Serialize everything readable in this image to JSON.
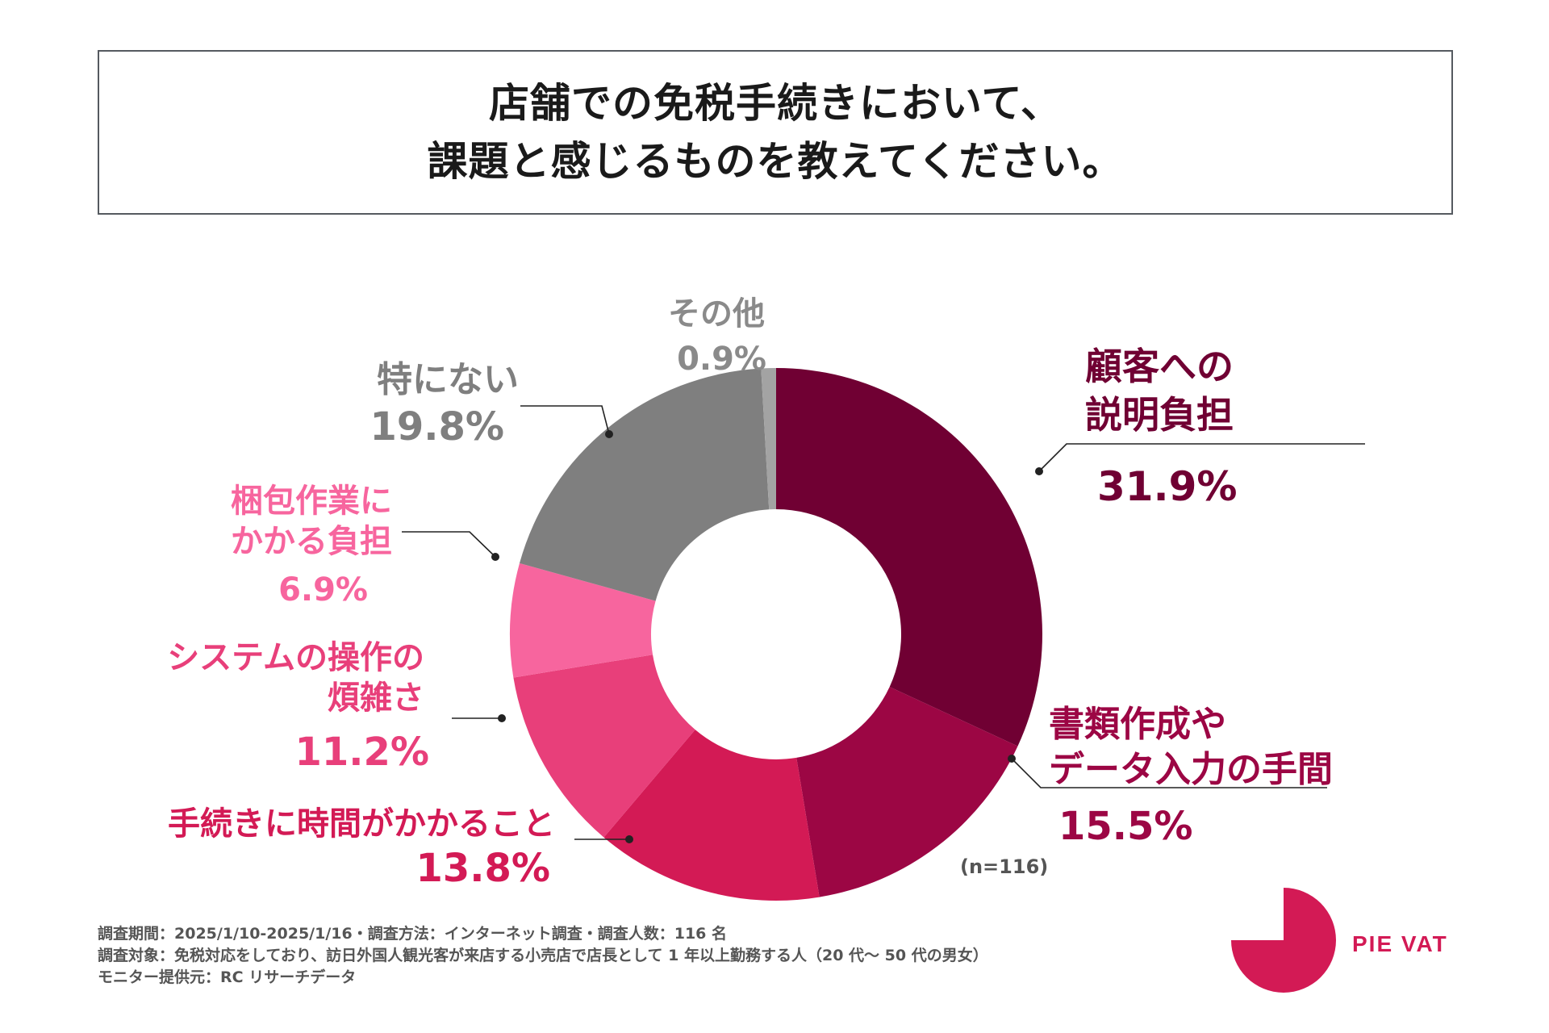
{
  "title": {
    "line1": "店舗での免税手続きにおいて、",
    "line2": "課題と感じるものを教えてください。"
  },
  "chart_data": {
    "type": "pie",
    "variant": "donut",
    "title": "店舗での免税手続きにおいて、課題と感じるものを教えてください。",
    "sample": "(n=116)",
    "slices": [
      {
        "label": "顧客への説明負担",
        "label_lines": [
          "顧客への",
          "説明負担"
        ],
        "value": 31.9,
        "value_label": "31.9%",
        "color": "#700033"
      },
      {
        "label": "書類作成やデータ入力の手間",
        "label_lines": [
          "書類作成や",
          "データ入力の手間"
        ],
        "value": 15.5,
        "value_label": "15.5%",
        "color": "#9c0644"
      },
      {
        "label": "手続きに時間がかかること",
        "label_lines": [
          "手続きに時間がかかること"
        ],
        "value": 13.8,
        "value_label": "13.8%",
        "color": "#d31a55"
      },
      {
        "label": "システムの操作の煩雑さ",
        "label_lines": [
          "システムの操作の",
          "煩雑さ"
        ],
        "value": 11.2,
        "value_label": "11.2%",
        "color": "#e83f7a"
      },
      {
        "label": "梱包作業にかかる負担",
        "label_lines": [
          "梱包作業に",
          "かかる負担"
        ],
        "value": 6.9,
        "value_label": "6.9%",
        "color": "#f7659e"
      },
      {
        "label": "特にない",
        "label_lines": [
          "特にない"
        ],
        "value": 19.8,
        "value_label": "19.8%",
        "color": "#7f7f7f"
      },
      {
        "label": "その他",
        "label_lines": [
          "その他"
        ],
        "value": 0.9,
        "value_label": "0.9%",
        "color": "#a3a3a3"
      }
    ]
  },
  "footnote": {
    "line1": "調査期間：2025/1/10-2025/1/16・調査方法：インターネット調査・調査人数：116 名",
    "line2": "調査対象：免税対応をしており、訪日外国人観光客が来店する小売店で店長として 1 年以上勤務する人（20 代〜 50 代の男女）",
    "line3": "モニター提供元：RC リサーチデータ"
  },
  "logo": {
    "text": "PIE VAT",
    "color": "#d31a55"
  }
}
